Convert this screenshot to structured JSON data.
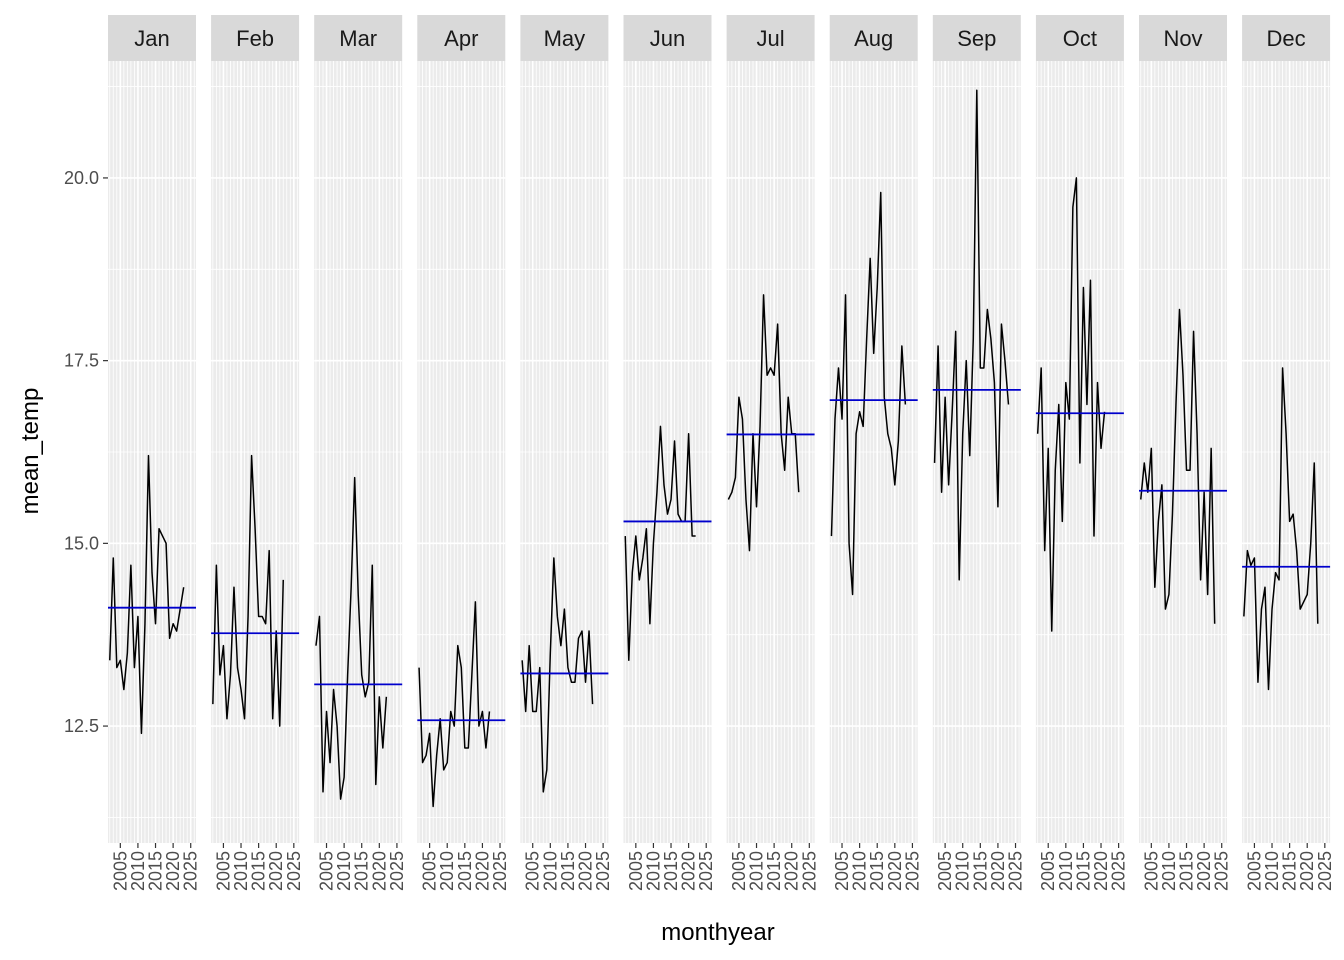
{
  "chart_data": {
    "type": "line",
    "facet_by": "month",
    "xlabel": "monthyear",
    "ylabel": "mean_temp",
    "ylim": [
      10.9,
      21.6
    ],
    "yticks": [
      12.5,
      15.0,
      17.5,
      20.0
    ],
    "ytick_labels": [
      "12.5",
      "15.0",
      "17.5",
      "20.0"
    ],
    "xlim": [
      2001.5,
      2026.5
    ],
    "xticks": [
      2005,
      2010,
      2015,
      2020,
      2025
    ],
    "xtick_labels": [
      "2005",
      "2010",
      "2015",
      "2020",
      "2025"
    ],
    "grid": true,
    "line_color": "#000000",
    "mean_line_color": "#0000cc",
    "years": [
      2002,
      2003,
      2004,
      2005,
      2006,
      2007,
      2008,
      2009,
      2010,
      2011,
      2012,
      2013,
      2014,
      2015,
      2016,
      2017,
      2018,
      2019,
      2020,
      2021,
      2022,
      2023,
      2024
    ],
    "facets": [
      {
        "label": "Jan",
        "mean": 14.12,
        "values": [
          13.4,
          14.8,
          13.3,
          13.4,
          13.0,
          13.5,
          14.7,
          13.3,
          14.0,
          12.4,
          13.9,
          16.2,
          14.6,
          13.9,
          15.2,
          15.1,
          15.0,
          13.7,
          13.9,
          13.8,
          14.1,
          14.4,
          null
        ]
      },
      {
        "label": "Feb",
        "mean": 13.77,
        "values": [
          12.8,
          14.7,
          13.2,
          13.6,
          12.6,
          13.2,
          14.4,
          13.3,
          13.0,
          12.6,
          14.0,
          16.2,
          15.2,
          14.0,
          14.0,
          13.9,
          14.9,
          12.6,
          13.8,
          12.5,
          14.5,
          null,
          null
        ]
      },
      {
        "label": "Mar",
        "mean": 13.07,
        "values": [
          13.6,
          14.0,
          11.6,
          12.7,
          12.0,
          13.0,
          12.5,
          11.5,
          11.8,
          13.2,
          14.4,
          15.9,
          14.3,
          13.2,
          12.9,
          13.1,
          14.7,
          11.7,
          12.9,
          12.2,
          12.9,
          null,
          null
        ]
      },
      {
        "label": "Apr",
        "mean": 12.58,
        "values": [
          13.3,
          12.0,
          12.1,
          12.4,
          11.4,
          12.1,
          12.6,
          11.9,
          12.0,
          12.7,
          12.5,
          13.6,
          13.3,
          12.2,
          12.2,
          13.2,
          14.2,
          12.5,
          12.7,
          12.2,
          12.7,
          null,
          null
        ]
      },
      {
        "label": "May",
        "mean": 13.22,
        "values": [
          13.4,
          12.7,
          13.6,
          12.7,
          12.7,
          13.3,
          11.6,
          11.9,
          13.5,
          14.8,
          14.0,
          13.6,
          14.1,
          13.3,
          13.1,
          13.1,
          13.7,
          13.8,
          13.1,
          13.8,
          12.8,
          null,
          null
        ]
      },
      {
        "label": "Jun",
        "mean": 15.3,
        "values": [
          15.1,
          13.4,
          14.6,
          15.1,
          14.5,
          14.8,
          15.2,
          13.9,
          15.0,
          15.7,
          16.6,
          15.8,
          15.4,
          15.6,
          16.4,
          15.4,
          15.3,
          15.3,
          16.5,
          15.1,
          15.1,
          null,
          null
        ]
      },
      {
        "label": "Jul",
        "mean": 16.49,
        "values": [
          15.6,
          15.7,
          15.9,
          17.0,
          16.7,
          15.6,
          14.9,
          16.5,
          15.5,
          16.6,
          18.4,
          17.3,
          17.4,
          17.3,
          18.0,
          16.5,
          16.0,
          17.0,
          16.5,
          16.5,
          15.7,
          null,
          null
        ]
      },
      {
        "label": "Aug",
        "mean": 16.96,
        "values": [
          15.1,
          16.7,
          17.4,
          16.7,
          18.4,
          15.0,
          14.3,
          16.5,
          16.8,
          16.6,
          17.8,
          18.9,
          17.6,
          18.5,
          19.8,
          17.0,
          16.5,
          16.3,
          15.8,
          16.4,
          17.7,
          16.9,
          null
        ]
      },
      {
        "label": "Sep",
        "mean": 17.1,
        "values": [
          16.1,
          17.7,
          15.7,
          17.0,
          15.8,
          16.8,
          17.9,
          14.5,
          16.5,
          17.5,
          16.2,
          17.8,
          21.2,
          17.4,
          17.4,
          18.2,
          17.8,
          17.2,
          15.5,
          18.0,
          17.5,
          16.9,
          null
        ]
      },
      {
        "label": "Oct",
        "mean": 16.78,
        "values": [
          16.5,
          17.4,
          14.9,
          16.3,
          13.8,
          16.0,
          16.9,
          15.3,
          17.2,
          16.7,
          19.6,
          20.0,
          16.1,
          18.5,
          16.9,
          18.6,
          15.1,
          17.2,
          16.3,
          16.8,
          null,
          null,
          null
        ]
      },
      {
        "label": "Nov",
        "mean": 15.72,
        "values": [
          15.6,
          16.1,
          15.7,
          16.3,
          14.4,
          15.3,
          15.8,
          14.1,
          14.3,
          15.4,
          16.9,
          18.2,
          17.3,
          16.0,
          16.0,
          17.9,
          16.5,
          14.5,
          15.7,
          14.3,
          16.3,
          13.9,
          null
        ]
      },
      {
        "label": "Dec",
        "mean": 14.68,
        "values": [
          14.0,
          14.9,
          14.7,
          14.8,
          13.1,
          14.1,
          14.4,
          13.0,
          14.1,
          14.6,
          14.5,
          17.4,
          16.5,
          15.3,
          15.4,
          14.9,
          14.1,
          14.2,
          14.3,
          15.0,
          16.1,
          13.9,
          null
        ]
      }
    ]
  }
}
